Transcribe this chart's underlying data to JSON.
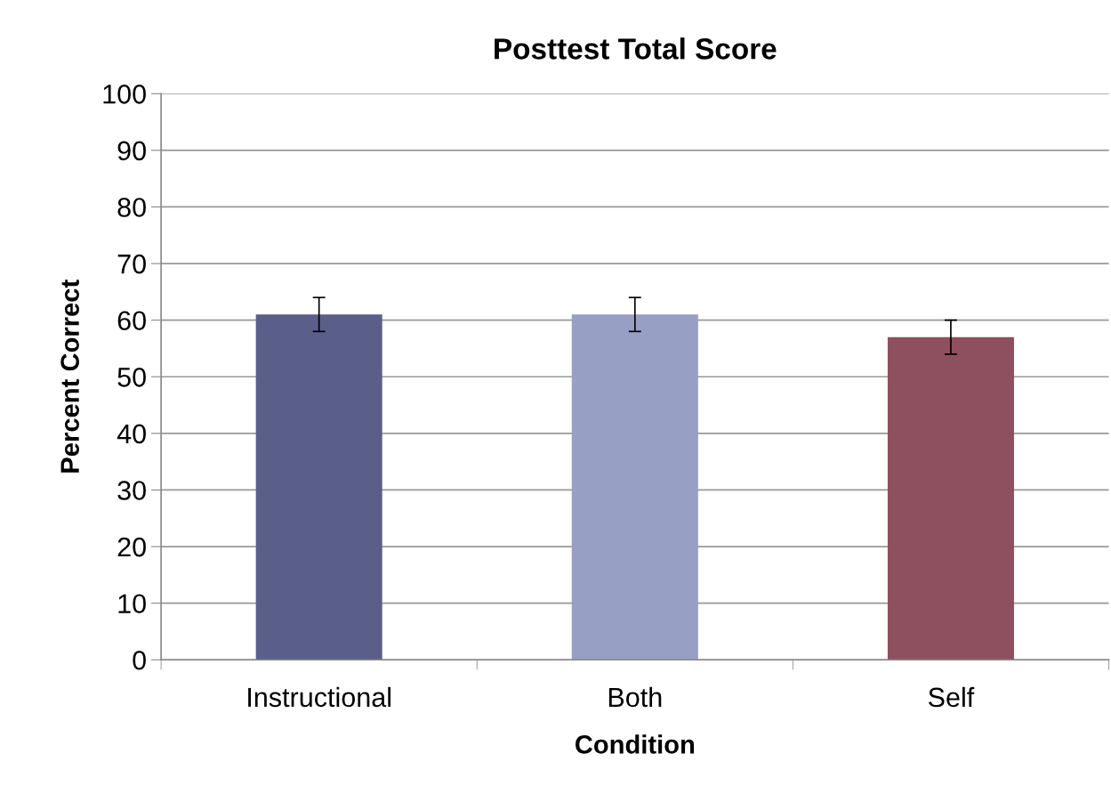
{
  "chart_data": {
    "type": "bar",
    "title": "Posttest Total Score",
    "xlabel": "Condition",
    "ylabel": "Percent Correct",
    "categories": [
      "Instructional",
      "Both",
      "Self"
    ],
    "values": [
      61,
      61,
      57
    ],
    "colors": [
      "#5a5f8a",
      "#989fc4",
      "#8e4f5e"
    ],
    "errors": [
      3,
      3,
      3
    ],
    "ylim": [
      0,
      100
    ],
    "yticks": [
      0,
      10,
      20,
      30,
      40,
      50,
      60,
      70,
      80,
      90,
      100
    ],
    "grid": "y",
    "legend": false
  }
}
